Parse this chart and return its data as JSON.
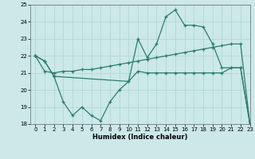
{
  "color": "#2d7d6e",
  "bg_color": "#cce8e8",
  "grid_color": "#b0d8d8",
  "xlabel": "Humidex (Indice chaleur)",
  "ylim": [
    18,
    25
  ],
  "xlim": [
    -0.5,
    23
  ],
  "yticks": [
    18,
    19,
    20,
    21,
    22,
    23,
    24,
    25
  ],
  "xticks": [
    0,
    1,
    2,
    3,
    4,
    5,
    6,
    7,
    8,
    9,
    10,
    11,
    12,
    13,
    14,
    15,
    16,
    17,
    18,
    19,
    20,
    21,
    22,
    23
  ],
  "line_A_x": [
    0,
    1,
    2,
    3,
    4,
    5,
    6,
    7,
    8,
    9,
    10,
    11,
    12,
    13,
    14,
    15,
    16,
    17,
    18,
    19,
    20,
    21,
    22,
    23
  ],
  "line_A_y": [
    22.0,
    21.7,
    20.8,
    19.3,
    18.5,
    19.0,
    18.5,
    18.2,
    19.3,
    20.0,
    20.5,
    21.1,
    21.0,
    21.0,
    21.0,
    21.0,
    21.0,
    21.0,
    21.0,
    21.0,
    21.0,
    21.3,
    21.3,
    18.0
  ],
  "line_B_x": [
    0,
    1,
    2,
    3,
    4,
    5,
    6,
    7,
    8,
    9,
    10,
    11,
    12,
    13,
    14,
    15,
    16,
    17,
    18,
    19,
    20,
    21,
    22,
    23
  ],
  "line_B_y": [
    22.0,
    21.1,
    21.0,
    21.1,
    21.1,
    21.2,
    21.2,
    21.3,
    21.4,
    21.5,
    21.6,
    21.7,
    21.8,
    21.9,
    22.0,
    22.1,
    22.2,
    22.3,
    22.4,
    22.5,
    22.6,
    22.7,
    22.7,
    18.0
  ],
  "line_C_x": [
    0,
    1,
    2,
    10,
    11,
    12,
    13,
    14,
    15,
    16,
    17,
    18,
    19,
    20,
    21,
    22,
    23
  ],
  "line_C_y": [
    22.0,
    21.7,
    20.8,
    20.5,
    23.0,
    21.9,
    22.7,
    24.3,
    24.7,
    23.8,
    23.8,
    23.7,
    22.7,
    21.3,
    21.3,
    21.3,
    18.0
  ]
}
